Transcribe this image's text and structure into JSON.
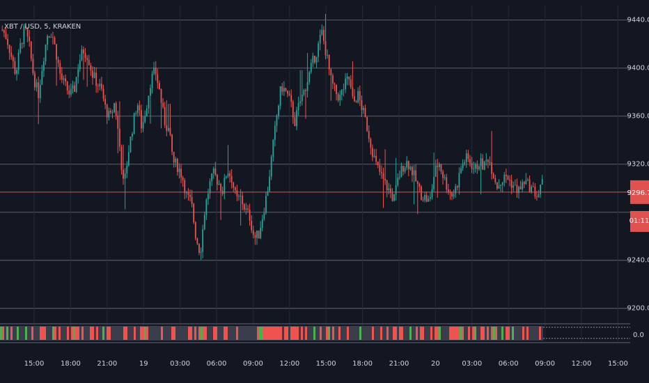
{
  "title": "XBT / USD, 5, KRAKEN",
  "colors": {
    "background": "#131722",
    "grid": "#4a4e5c",
    "axis_text": "#d1d4dc",
    "up": "#26a69a",
    "down": "#ef5350",
    "price_line": "#e0524f",
    "vol_up": "#4caf50",
    "vol_down": "#ef5350",
    "vol_neutral": "#3a3e4a"
  },
  "price_label": "9296.7",
  "countdown_label": "01:11",
  "indicator_label": "0.0",
  "chart_data": {
    "type": "candlestick",
    "title": "XBT / USD, 5, KRAKEN",
    "y_ticks": [
      "9440.0",
      "9400.0",
      "9360.0",
      "9320.0",
      "9240.0",
      "9200.0"
    ],
    "x_ticks": [
      "15:00",
      "18:00",
      "21:00",
      "19",
      "03:00",
      "06:00",
      "09:00",
      "12:00",
      "15:00",
      "18:00",
      "21:00",
      "20",
      "03:00",
      "06:00",
      "09:00",
      "12:00",
      "15:00"
    ],
    "ylim": [
      9190,
      9452
    ],
    "last_price": 9296.7,
    "grid": true,
    "series": [
      {
        "name": "XBT/USD",
        "close_path": [
          [
            0,
            9432
          ],
          [
            0.5,
            9425
          ],
          [
            1.0,
            9410
          ],
          [
            1.5,
            9395
          ],
          [
            2.0,
            9418
          ],
          [
            2.5,
            9433
          ],
          [
            3.0,
            9418
          ],
          [
            3.5,
            9392
          ],
          [
            4.0,
            9378
          ],
          [
            4.5,
            9405
          ],
          [
            5.0,
            9428
          ],
          [
            5.5,
            9430
          ],
          [
            6.0,
            9412
          ],
          [
            6.5,
            9392
          ],
          [
            7.0,
            9385
          ],
          [
            7.5,
            9378
          ],
          [
            8.0,
            9382
          ],
          [
            8.5,
            9405
          ],
          [
            9.0,
            9415
          ],
          [
            9.5,
            9410
          ],
          [
            10.0,
            9395
          ],
          [
            10.5,
            9388
          ],
          [
            11.0,
            9382
          ],
          [
            11.5,
            9365
          ],
          [
            12.0,
            9358
          ],
          [
            12.5,
            9372
          ],
          [
            13.0,
            9338
          ],
          [
            13.5,
            9300
          ],
          [
            14.0,
            9330
          ],
          [
            14.5,
            9352
          ],
          [
            15.0,
            9372
          ],
          [
            15.5,
            9350
          ],
          [
            16.0,
            9368
          ],
          [
            16.5,
            9390
          ],
          [
            17.0,
            9398
          ],
          [
            17.5,
            9380
          ],
          [
            18.0,
            9356
          ],
          [
            18.5,
            9348
          ],
          [
            19.0,
            9322
          ],
          [
            19.5,
            9318
          ],
          [
            20.0,
            9310
          ],
          [
            20.5,
            9293
          ],
          [
            21.0,
            9288
          ],
          [
            21.5,
            9260
          ],
          [
            22.0,
            9246
          ],
          [
            22.5,
            9282
          ],
          [
            23.0,
            9302
          ],
          [
            23.5,
            9312
          ],
          [
            24.0,
            9305
          ],
          [
            24.5,
            9298
          ],
          [
            25.0,
            9316
          ],
          [
            25.5,
            9308
          ],
          [
            26.0,
            9290
          ],
          [
            26.5,
            9292
          ],
          [
            27.0,
            9282
          ],
          [
            27.5,
            9276
          ],
          [
            28.0,
            9258
          ],
          [
            28.5,
            9262
          ],
          [
            29.0,
            9280
          ],
          [
            29.5,
            9300
          ],
          [
            30.0,
            9330
          ],
          [
            30.5,
            9360
          ],
          [
            31.0,
            9385
          ],
          [
            31.5,
            9380
          ],
          [
            32.0,
            9372
          ],
          [
            32.5,
            9355
          ],
          [
            33.0,
            9370
          ],
          [
            33.5,
            9380
          ],
          [
            34.0,
            9392
          ],
          [
            34.5,
            9405
          ],
          [
            35.0,
            9415
          ],
          [
            35.5,
            9430
          ],
          [
            36.0,
            9412
          ],
          [
            36.5,
            9390
          ],
          [
            37.0,
            9380
          ],
          [
            37.5,
            9375
          ],
          [
            38.0,
            9385
          ],
          [
            38.5,
            9392
          ],
          [
            39.0,
            9370
          ],
          [
            39.5,
            9378
          ],
          [
            40.0,
            9366
          ],
          [
            40.5,
            9352
          ],
          [
            41.0,
            9335
          ],
          [
            41.5,
            9320
          ],
          [
            42.0,
            9312
          ],
          [
            42.5,
            9304
          ],
          [
            43.0,
            9298
          ],
          [
            43.5,
            9290
          ],
          [
            44.0,
            9308
          ],
          [
            44.5,
            9318
          ],
          [
            45.0,
            9322
          ],
          [
            45.5,
            9315
          ],
          [
            46.0,
            9305
          ],
          [
            46.5,
            9295
          ],
          [
            47.0,
            9292
          ],
          [
            47.5,
            9288
          ],
          [
            48.0,
            9312
          ],
          [
            48.5,
            9322
          ],
          [
            49.0,
            9310
          ],
          [
            49.5,
            9300
          ],
          [
            50.0,
            9294
          ],
          [
            50.5,
            9302
          ],
          [
            51.0,
            9318
          ],
          [
            51.5,
            9325
          ],
          [
            52.0,
            9322
          ],
          [
            52.5,
            9315
          ],
          [
            53.0,
            9322
          ],
          [
            53.5,
            9318
          ],
          [
            54.0,
            9326
          ],
          [
            54.5,
            9314
          ],
          [
            55.0,
            9302
          ],
          [
            55.5,
            9306
          ],
          [
            56.0,
            9310
          ],
          [
            56.5,
            9305
          ],
          [
            57.0,
            9300
          ],
          [
            57.5,
            9298
          ],
          [
            58.0,
            9306
          ],
          [
            58.5,
            9302
          ],
          [
            59.0,
            9298
          ],
          [
            59.5,
            9293
          ],
          [
            60.0,
            9304
          ]
        ]
      }
    ]
  }
}
